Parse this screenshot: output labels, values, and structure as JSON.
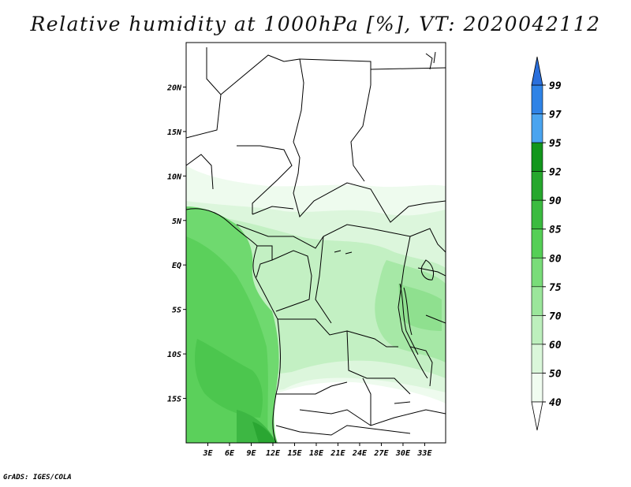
{
  "title": "Relative humidity at 1000hPa [%], VT: 2020042112",
  "credit": "GrADS: IGES/COLA",
  "axes": {
    "lon_ticks": [
      "3E",
      "6E",
      "9E",
      "12E",
      "15E",
      "18E",
      "21E",
      "24E",
      "27E",
      "30E",
      "33E"
    ],
    "lat_ticks": [
      "20N",
      "15N",
      "10N",
      "5N",
      "EQ",
      "5S",
      "10S",
      "15S"
    ]
  },
  "colorbar": {
    "labels": [
      "99",
      "97",
      "95",
      "92",
      "90",
      "85",
      "80",
      "75",
      "70",
      "60",
      "50",
      "40"
    ],
    "colors": [
      "#2a6fdc",
      "#2f83e6",
      "#4aa4ef",
      "#12961c",
      "#26a72d",
      "#3bbb40",
      "#55cf56",
      "#79dc79",
      "#9be69b",
      "#bdefbd",
      "#daf7da",
      "#f0fcf0"
    ],
    "extend": "both"
  },
  "map": {
    "lon_range": [
      0,
      35
    ],
    "lat_range": [
      -20,
      25
    ]
  }
}
